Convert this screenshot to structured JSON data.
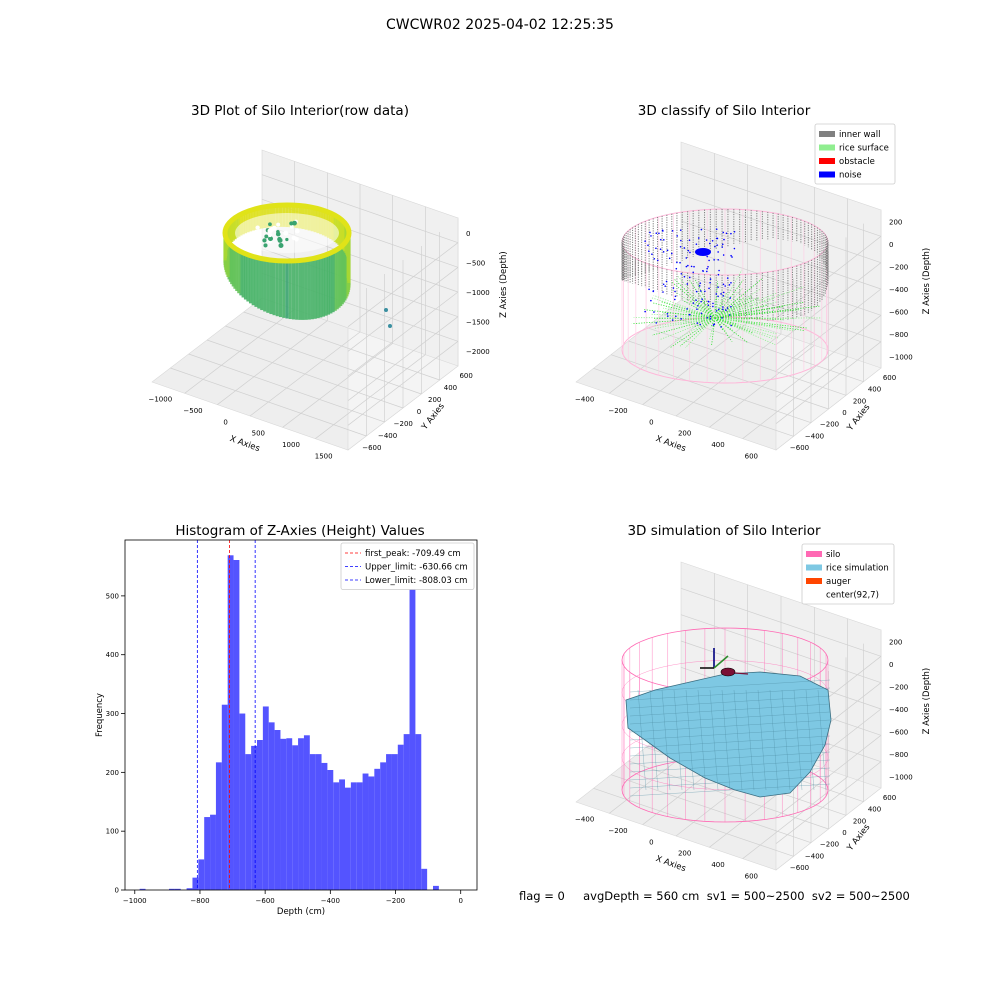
{
  "suptitle": "CWCWR02 2025-04-02 12:25:35",
  "footer_text": "flag = 0     avgDepth = 560 cm  sv1 = 500~2500  sv2 = 500~2500",
  "colors": {
    "inner_wall": "#808080",
    "rice_surface": "#90ee90",
    "obstacle": "#ff0000",
    "noise": "#0000ff",
    "silo": "#ff69b4",
    "rice_simulation": "#7ec8e3",
    "auger": "#ff4500",
    "hist_bar": "#4b4bff"
  },
  "chart_data": [
    {
      "type": "scatter",
      "title": "3D Plot of Silo Interior(row data)",
      "xlabel": "X Axies",
      "ylabel": "Y Axies",
      "zlabel": "Z Axies (Depth)",
      "x_ticks": [
        "−1000",
        "−500",
        "0",
        "500",
        "1000",
        "1500"
      ],
      "y_ticks": [
        "−600",
        "−400",
        "−200",
        "0",
        "200",
        "400",
        "600"
      ],
      "z_ticks": [
        "0",
        "−500",
        "−1000",
        "−1500",
        "−2000"
      ]
    },
    {
      "type": "scatter",
      "title": "3D classify of Silo Interior",
      "xlabel": "X Axies",
      "ylabel": "Y Axies",
      "zlabel": "Z Axies (Depth)",
      "x_ticks": [
        "−400",
        "−200",
        "0",
        "200",
        "400",
        "600"
      ],
      "y_ticks": [
        "−600",
        "−400",
        "−200",
        "0",
        "200",
        "400",
        "600"
      ],
      "z_ticks": [
        "200",
        "0",
        "−200",
        "−400",
        "−600",
        "−800",
        "−1000"
      ],
      "legend": [
        "inner wall",
        "rice surface",
        "obstacle",
        "noise"
      ],
      "legend_loc": "upper right"
    },
    {
      "type": "bar",
      "title": "Histogram of Z-Axies (Height) Values",
      "xlabel": "Depth (cm)",
      "ylabel": "Frequency",
      "xlim": [
        -1030,
        50
      ],
      "ylim": [
        0,
        595
      ],
      "x_ticks": [
        -1000,
        -800,
        -600,
        -400,
        -200,
        0
      ],
      "x_tick_labels": [
        "−1000",
        "−800",
        "−600",
        "−400",
        "−200",
        "0"
      ],
      "y_ticks": [
        0,
        100,
        200,
        300,
        400,
        500
      ],
      "bin_edges_start": -1003,
      "bin_width": 18,
      "values": [
        0,
        2,
        0,
        0,
        0,
        0,
        2,
        2,
        0,
        3,
        21,
        52,
        124,
        128,
        217,
        315,
        569,
        561,
        300,
        231,
        245,
        255,
        312,
        285,
        272,
        257,
        258,
        246,
        258,
        263,
        231,
        231,
        216,
        204,
        183,
        188,
        174,
        183,
        183,
        198,
        193,
        206,
        217,
        231,
        231,
        247,
        265,
        563,
        265,
        36,
        0,
        7
      ],
      "reference_lines": [
        {
          "label": "first_peak: -709.49 cm",
          "x": -709.49,
          "color": "#ff0000",
          "style": "dashed"
        },
        {
          "label": "Upper_limit: -630.66 cm",
          "x": -630.66,
          "color": "#0000ff",
          "style": "dashed"
        },
        {
          "label": "Lower_limit: -808.03 cm",
          "x": -808.03,
          "color": "#0000ff",
          "style": "dashed"
        }
      ],
      "legend_loc": "upper right"
    },
    {
      "type": "scatter",
      "title": "3D simulation of Silo Interior",
      "xlabel": "X Axies",
      "ylabel": "Y Axies",
      "zlabel": "Z Axies (Depth)",
      "x_ticks": [
        "−400",
        "−200",
        "0",
        "200",
        "400",
        "600"
      ],
      "y_ticks": [
        "−600",
        "−400",
        "−200",
        "0",
        "200",
        "400",
        "600"
      ],
      "z_ticks": [
        "200",
        "0",
        "−200",
        "−400",
        "−600",
        "−800",
        "−1000"
      ],
      "legend": [
        "silo",
        "rice simulation",
        "auger",
        "center(92,7)"
      ],
      "legend_loc": "upper right"
    }
  ]
}
